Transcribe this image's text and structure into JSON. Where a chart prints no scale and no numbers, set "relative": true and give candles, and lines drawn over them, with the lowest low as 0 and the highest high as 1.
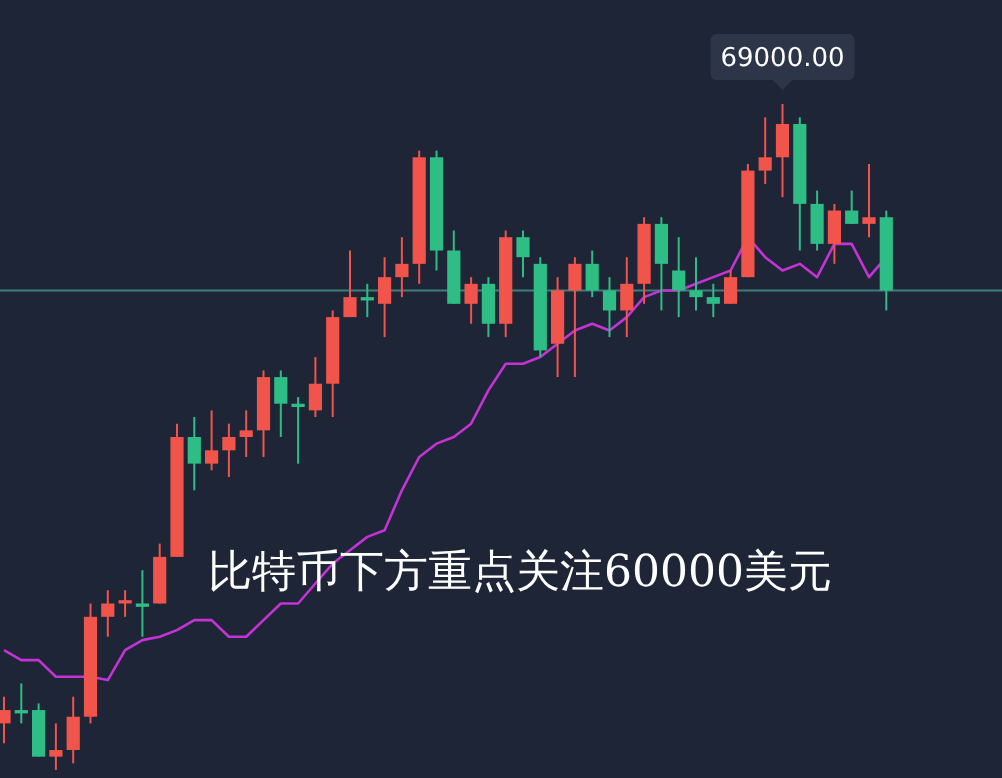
{
  "chart_data": {
    "type": "candlestick",
    "relative": true,
    "categories": [
      null,
      null,
      null,
      null,
      null,
      null,
      null,
      null,
      null,
      null,
      null,
      null,
      null,
      null,
      null,
      null,
      null,
      null,
      null,
      null,
      null,
      null,
      null,
      null,
      null,
      null,
      null,
      null,
      null,
      null,
      null,
      null,
      null,
      null,
      null,
      null,
      null,
      null,
      null,
      null,
      null,
      null,
      null,
      null,
      null,
      null,
      null,
      null,
      null,
      null,
      null,
      null
    ],
    "ohlc": [
      [
        0.07,
        0.11,
        0.04,
        0.09
      ],
      [
        0.09,
        0.13,
        0.07,
        0.085
      ],
      [
        0.09,
        0.1,
        0.02,
        0.02
      ],
      [
        0.02,
        0.07,
        0.0,
        0.03
      ],
      [
        0.03,
        0.11,
        0.01,
        0.08
      ],
      [
        0.08,
        0.25,
        0.07,
        0.23
      ],
      [
        0.23,
        0.27,
        0.2,
        0.25
      ],
      [
        0.25,
        0.27,
        0.23,
        0.255
      ],
      [
        0.25,
        0.3,
        0.2,
        0.245
      ],
      [
        0.25,
        0.34,
        0.25,
        0.32
      ],
      [
        0.32,
        0.52,
        0.32,
        0.5
      ],
      [
        0.5,
        0.53,
        0.42,
        0.46
      ],
      [
        0.46,
        0.54,
        0.45,
        0.48
      ],
      [
        0.48,
        0.52,
        0.44,
        0.5
      ],
      [
        0.5,
        0.54,
        0.47,
        0.51
      ],
      [
        0.51,
        0.6,
        0.47,
        0.59
      ],
      [
        0.59,
        0.6,
        0.5,
        0.55
      ],
      [
        0.55,
        0.56,
        0.46,
        0.545
      ],
      [
        0.54,
        0.62,
        0.53,
        0.58
      ],
      [
        0.58,
        0.69,
        0.53,
        0.68
      ],
      [
        0.68,
        0.78,
        0.68,
        0.71
      ],
      [
        0.71,
        0.73,
        0.68,
        0.705
      ],
      [
        0.7,
        0.77,
        0.65,
        0.74
      ],
      [
        0.74,
        0.8,
        0.71,
        0.76
      ],
      [
        0.76,
        0.93,
        0.73,
        0.92
      ],
      [
        0.92,
        0.93,
        0.75,
        0.78
      ],
      [
        0.78,
        0.81,
        0.7,
        0.7
      ],
      [
        0.7,
        0.74,
        0.67,
        0.73
      ],
      [
        0.73,
        0.74,
        0.65,
        0.67
      ],
      [
        0.67,
        0.81,
        0.65,
        0.8
      ],
      [
        0.8,
        0.81,
        0.74,
        0.77
      ],
      [
        0.76,
        0.77,
        0.62,
        0.63
      ],
      [
        0.64,
        0.74,
        0.59,
        0.72
      ],
      [
        0.72,
        0.77,
        0.59,
        0.76
      ],
      [
        0.76,
        0.78,
        0.71,
        0.72
      ],
      [
        0.72,
        0.74,
        0.65,
        0.69
      ],
      [
        0.69,
        0.77,
        0.65,
        0.73
      ],
      [
        0.73,
        0.83,
        0.7,
        0.82
      ],
      [
        0.82,
        0.83,
        0.69,
        0.76
      ],
      [
        0.75,
        0.8,
        0.68,
        0.72
      ],
      [
        0.72,
        0.77,
        0.69,
        0.71
      ],
      [
        0.71,
        0.73,
        0.68,
        0.7
      ],
      [
        0.7,
        0.75,
        0.7,
        0.74
      ],
      [
        0.74,
        0.91,
        0.74,
        0.9
      ],
      [
        0.9,
        0.98,
        0.88,
        0.92
      ],
      [
        0.92,
        1.0,
        0.86,
        0.97
      ],
      [
        0.97,
        0.98,
        0.78,
        0.85
      ],
      [
        0.85,
        0.87,
        0.78,
        0.79
      ],
      [
        0.79,
        0.85,
        0.76,
        0.84
      ],
      [
        0.84,
        0.87,
        0.82,
        0.82
      ],
      [
        0.82,
        0.91,
        0.8,
        0.83
      ],
      [
        0.83,
        0.84,
        0.69,
        0.72
      ]
    ],
    "colors": [
      "#f0544a",
      "#2ebd85",
      "#2ebd85",
      "#f0544a",
      "#f0544a",
      "#f0544a",
      "#f0544a",
      "#f0544a",
      "#2ebd85",
      "#f0544a",
      "#f0544a",
      "#2ebd85",
      "#f0544a",
      "#f0544a",
      "#f0544a",
      "#f0544a",
      "#2ebd85",
      "#2ebd85",
      "#f0544a",
      "#f0544a",
      "#f0544a",
      "#2ebd85",
      "#f0544a",
      "#f0544a",
      "#f0544a",
      "#2ebd85",
      "#2ebd85",
      "#f0544a",
      "#2ebd85",
      "#f0544a",
      "#2ebd85",
      "#2ebd85",
      "#f0544a",
      "#f0544a",
      "#2ebd85",
      "#2ebd85",
      "#f0544a",
      "#f0544a",
      "#2ebd85",
      "#2ebd85",
      "#2ebd85",
      "#2ebd85",
      "#f0544a",
      "#f0544a",
      "#f0544a",
      "#f0544a",
      "#2ebd85",
      "#2ebd85",
      "#f0544a",
      "#2ebd85",
      "#f0544a",
      "#2ebd85"
    ],
    "series": [
      {
        "type": "line",
        "color": "#c433d6",
        "values": [
          0.18,
          0.165,
          0.165,
          0.14,
          0.14,
          0.14,
          0.135,
          0.18,
          0.195,
          0.2,
          0.21,
          0.225,
          0.225,
          0.2,
          0.2,
          0.225,
          0.25,
          0.25,
          0.28,
          0.31,
          0.33,
          0.35,
          0.36,
          0.42,
          0.47,
          0.49,
          0.5,
          0.52,
          0.57,
          0.61,
          0.61,
          0.62,
          0.64,
          0.66,
          0.67,
          0.66,
          0.68,
          0.71,
          0.72,
          0.72,
          0.73,
          0.74,
          0.75,
          0.8,
          0.77,
          0.75,
          0.76,
          0.74,
          0.79,
          0.79,
          0.74,
          0.77
        ]
      }
    ],
    "ref_lines": [
      {
        "axis": "y",
        "value": 0.72,
        "color": "#3d7f78"
      }
    ],
    "annotations": [
      "69000.00",
      "比特币下方重点关注60000美元"
    ]
  }
}
